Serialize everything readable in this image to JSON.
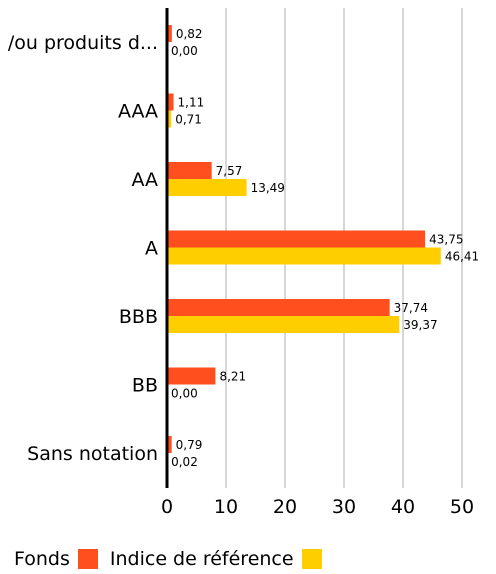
{
  "chart_data": {
    "type": "bar",
    "orientation": "horizontal",
    "categories": [
      "/ou produits d...",
      "AAA",
      "AA",
      "A",
      "BBB",
      "BB",
      "Sans notation"
    ],
    "series": [
      {
        "name": "Fonds",
        "color": "#ff4f1f",
        "values": [
          0.82,
          1.11,
          7.57,
          43.75,
          37.74,
          8.21,
          0.79
        ],
        "labels": [
          "0,82",
          "1,11",
          "7,57",
          "43,75",
          "37,74",
          "8,21",
          "0,79"
        ]
      },
      {
        "name": "Indice de référence",
        "color": "#ffce00",
        "values": [
          0.0,
          0.71,
          13.49,
          46.41,
          39.37,
          0.0,
          0.02
        ],
        "labels": [
          "0,00",
          "0,71",
          "13,49",
          "46,41",
          "39,37",
          "0,00",
          "0,02"
        ]
      }
    ],
    "xlim": [
      0,
      50
    ],
    "xticks": [
      0,
      10,
      20,
      30,
      40,
      50
    ],
    "xtick_labels": [
      "0",
      "10",
      "20",
      "30",
      "40",
      "50"
    ],
    "grid": true,
    "legend_position": "bottom-left"
  }
}
